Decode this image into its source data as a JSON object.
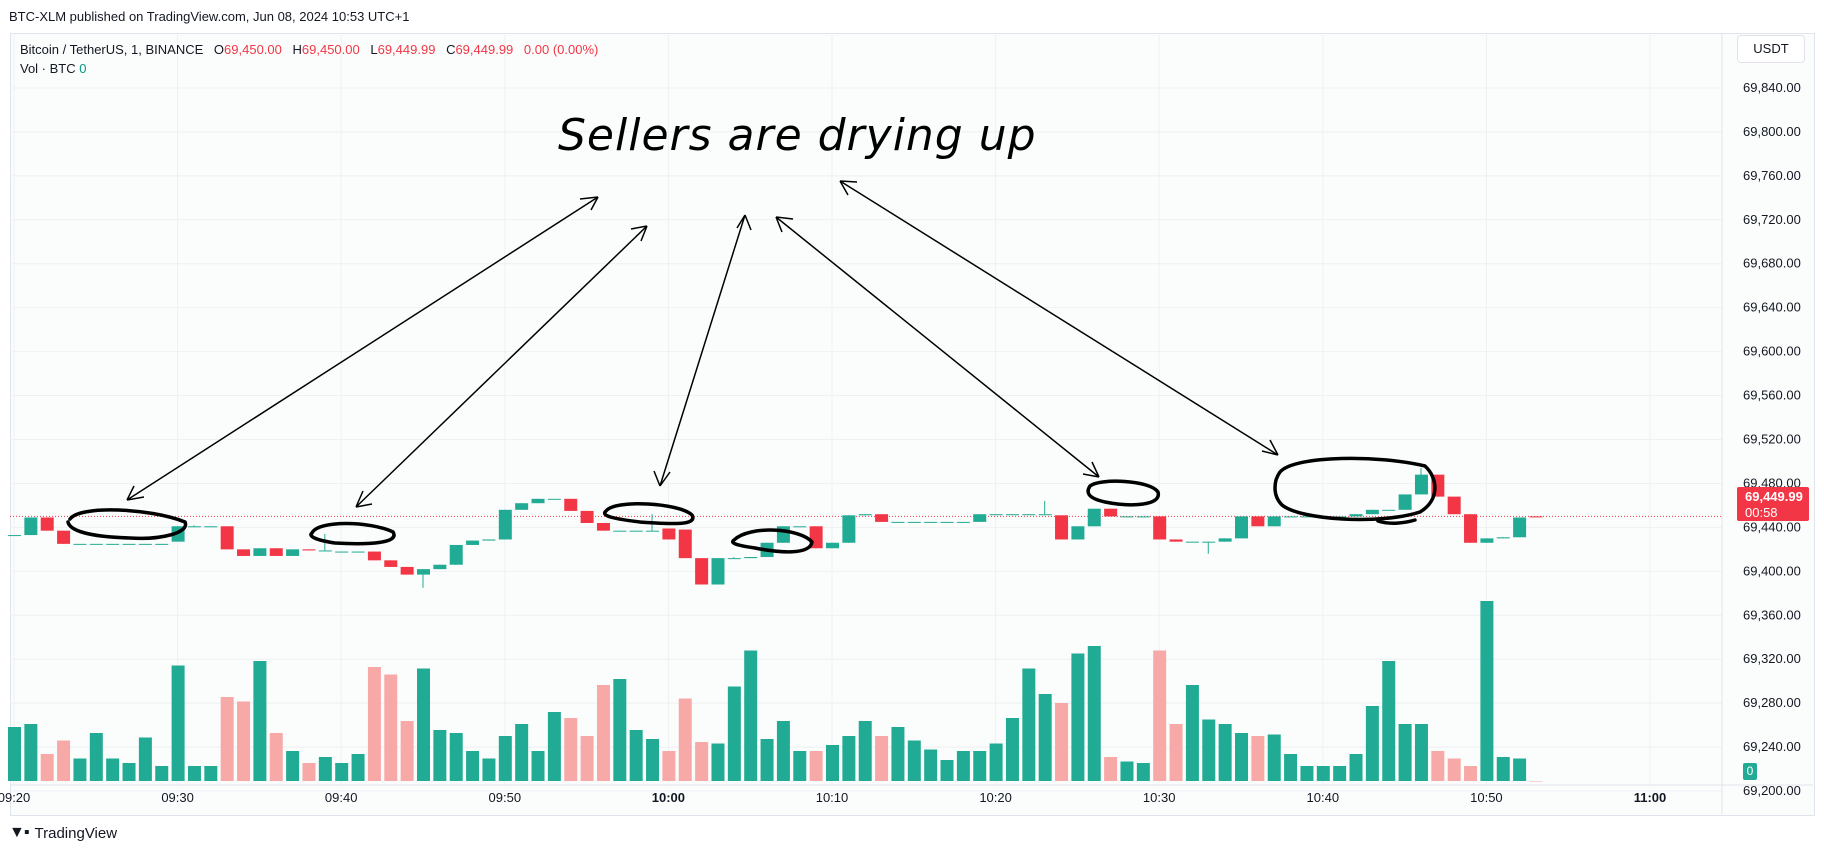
{
  "header": {
    "published": "BTC-XLM published on TradingView.com, Jun 08, 2024 10:53 UTC+1"
  },
  "legend": {
    "symbol": "Bitcoin / TetherUS, 1, BINANCE",
    "o_label": "O",
    "o_value": "69,450.00",
    "h_label": "H",
    "h_value": "69,450.00",
    "l_label": "L",
    "l_value": "69,449.99",
    "c_label": "C",
    "c_value": "69,449.99",
    "change": "0.00 (0.00%)",
    "vol_label": "Vol · BTC",
    "vol_value": "0"
  },
  "currency_button": "USDT",
  "last_price": {
    "price": "69,449.99",
    "countdown": "00:58"
  },
  "volume_badge": "0",
  "annotation_text": "Sellers are drying up",
  "footer": {
    "brand": "TradingView"
  },
  "colors": {
    "up": "#22ab94",
    "down": "#f23645",
    "vol_up": "#22ab94",
    "vol_down": "#f7a9a7",
    "grid": "#eef0f3",
    "last_line": "#f23645"
  },
  "chart_data": {
    "type": "candlestick",
    "y_ticks": [
      "69,840.00",
      "69,800.00",
      "69,760.00",
      "69,720.00",
      "69,680.00",
      "69,640.00",
      "69,600.00",
      "69,560.00",
      "69,520.00",
      "69,480.00",
      "69,440.00",
      "69,400.00",
      "69,360.00",
      "69,320.00",
      "69,280.00",
      "69,240.00",
      "69,200.00"
    ],
    "ylim": [
      69180,
      69860
    ],
    "x_ticks": [
      "09:20",
      "09:30",
      "09:40",
      "09:50",
      "10:00",
      "10:10",
      "10:20",
      "10:30",
      "10:40",
      "10:50",
      "11:00"
    ],
    "start_time": "09:20",
    "end_time": "11:00",
    "candles": [
      {
        "t": "09:20",
        "o": 69433,
        "h": 69433,
        "l": 69433,
        "c": 69433,
        "v": 0.36
      },
      {
        "t": "09:21",
        "o": 69433,
        "h": 69449,
        "l": 69433,
        "c": 69449,
        "v": 0.38
      },
      {
        "t": "09:22",
        "o": 69449,
        "h": 69449,
        "l": 69437,
        "c": 69437,
        "v": 0.18
      },
      {
        "t": "09:23",
        "o": 69437,
        "h": 69437,
        "l": 69425,
        "c": 69425,
        "v": 0.27
      },
      {
        "t": "09:24",
        "o": 69425,
        "h": 69425,
        "l": 69425,
        "c": 69425,
        "v": 0.15
      },
      {
        "t": "09:25",
        "o": 69425,
        "h": 69425,
        "l": 69425,
        "c": 69425,
        "v": 0.32
      },
      {
        "t": "09:26",
        "o": 69425,
        "h": 69425,
        "l": 69425,
        "c": 69425,
        "v": 0.15
      },
      {
        "t": "09:27",
        "o": 69425,
        "h": 69425,
        "l": 69425,
        "c": 69425,
        "v": 0.12
      },
      {
        "t": "09:28",
        "o": 69425,
        "h": 69425,
        "l": 69425,
        "c": 69425,
        "v": 0.29
      },
      {
        "t": "09:29",
        "o": 69425,
        "h": 69425,
        "l": 69425,
        "c": 69425,
        "v": 0.1
      },
      {
        "t": "09:30",
        "o": 69427,
        "h": 69441,
        "l": 69427,
        "c": 69441,
        "v": 0.77
      },
      {
        "t": "09:31",
        "o": 69441,
        "h": 69442,
        "l": 69441,
        "c": 69441,
        "v": 0.1
      },
      {
        "t": "09:32",
        "o": 69441,
        "h": 69441,
        "l": 69441,
        "c": 69441,
        "v": 0.1
      },
      {
        "t": "09:33",
        "o": 69441,
        "h": 69441,
        "l": 69420,
        "c": 69420,
        "v": 0.56
      },
      {
        "t": "09:34",
        "o": 69420,
        "h": 69420,
        "l": 69414,
        "c": 69414,
        "v": 0.53
      },
      {
        "t": "09:35",
        "o": 69414,
        "h": 69421,
        "l": 69414,
        "c": 69421,
        "v": 0.8
      },
      {
        "t": "09:36",
        "o": 69421,
        "h": 69421,
        "l": 69414,
        "c": 69414,
        "v": 0.32
      },
      {
        "t": "09:37",
        "o": 69414,
        "h": 69420,
        "l": 69414,
        "c": 69420,
        "v": 0.2
      },
      {
        "t": "09:38",
        "o": 69420,
        "h": 69420,
        "l": 69419,
        "c": 69419,
        "v": 0.12
      },
      {
        "t": "09:39",
        "o": 69419,
        "h": 69434,
        "l": 69419,
        "c": 69419,
        "v": 0.16
      },
      {
        "t": "09:40",
        "o": 69418,
        "h": 69418,
        "l": 69418,
        "c": 69418,
        "v": 0.12
      },
      {
        "t": "09:41",
        "o": 69418,
        "h": 69418,
        "l": 69418,
        "c": 69418,
        "v": 0.18
      },
      {
        "t": "09:42",
        "o": 69418,
        "h": 69418,
        "l": 69410,
        "c": 69410,
        "v": 0.76
      },
      {
        "t": "09:43",
        "o": 69410,
        "h": 69410,
        "l": 69404,
        "c": 69404,
        "v": 0.71
      },
      {
        "t": "09:44",
        "o": 69404,
        "h": 69404,
        "l": 69397,
        "c": 69397,
        "v": 0.4
      },
      {
        "t": "09:45",
        "o": 69397,
        "h": 69402,
        "l": 69385,
        "c": 69402,
        "v": 0.75
      },
      {
        "t": "09:46",
        "o": 69402,
        "h": 69406,
        "l": 69402,
        "c": 69406,
        "v": 0.34
      },
      {
        "t": "09:47",
        "o": 69406,
        "h": 69424,
        "l": 69406,
        "c": 69424,
        "v": 0.32
      },
      {
        "t": "09:48",
        "o": 69424,
        "h": 69428,
        "l": 69424,
        "c": 69428,
        "v": 0.2
      },
      {
        "t": "09:49",
        "o": 69428,
        "h": 69429,
        "l": 69428,
        "c": 69429,
        "v": 0.15
      },
      {
        "t": "09:50",
        "o": 69429,
        "h": 69456,
        "l": 69429,
        "c": 69456,
        "v": 0.3
      },
      {
        "t": "09:51",
        "o": 69456,
        "h": 69462,
        "l": 69456,
        "c": 69462,
        "v": 0.38
      },
      {
        "t": "09:52",
        "o": 69462,
        "h": 69466,
        "l": 69462,
        "c": 69466,
        "v": 0.2
      },
      {
        "t": "09:53",
        "o": 69466,
        "h": 69466,
        "l": 69466,
        "c": 69466,
        "v": 0.46
      },
      {
        "t": "09:54",
        "o": 69466,
        "h": 69466,
        "l": 69455,
        "c": 69455,
        "v": 0.42
      },
      {
        "t": "09:55",
        "o": 69455,
        "h": 69455,
        "l": 69444,
        "c": 69444,
        "v": 0.3
      },
      {
        "t": "09:56",
        "o": 69444,
        "h": 69444,
        "l": 69437,
        "c": 69437,
        "v": 0.64
      },
      {
        "t": "09:57",
        "o": 69437,
        "h": 69437,
        "l": 69437,
        "c": 69437,
        "v": 0.68
      },
      {
        "t": "09:58",
        "o": 69437,
        "h": 69437,
        "l": 69437,
        "c": 69437,
        "v": 0.34
      },
      {
        "t": "09:59",
        "o": 69437,
        "h": 69452,
        "l": 69437,
        "c": 69437,
        "v": 0.28
      },
      {
        "t": "10:00",
        "o": 69439,
        "h": 69439,
        "l": 69429,
        "c": 69429,
        "v": 0.2
      },
      {
        "t": "10:01",
        "o": 69438,
        "h": 69438,
        "l": 69412,
        "c": 69412,
        "v": 0.55
      },
      {
        "t": "10:02",
        "o": 69412,
        "h": 69412,
        "l": 69388,
        "c": 69388,
        "v": 0.26
      },
      {
        "t": "10:03",
        "o": 69388,
        "h": 69412,
        "l": 69388,
        "c": 69412,
        "v": 0.25
      },
      {
        "t": "10:04",
        "o": 69412,
        "h": 69413,
        "l": 69412,
        "c": 69412,
        "v": 0.63
      },
      {
        "t": "10:05",
        "o": 69412,
        "h": 69413,
        "l": 69412,
        "c": 69413,
        "v": 0.87
      },
      {
        "t": "10:06",
        "o": 69413,
        "h": 69426,
        "l": 69413,
        "c": 69426,
        "v": 0.28
      },
      {
        "t": "10:07",
        "o": 69426,
        "h": 69441,
        "l": 69426,
        "c": 69441,
        "v": 0.4
      },
      {
        "t": "10:08",
        "o": 69441,
        "h": 69441,
        "l": 69441,
        "c": 69441,
        "v": 0.2
      },
      {
        "t": "10:09",
        "o": 69441,
        "h": 69441,
        "l": 69421,
        "c": 69421,
        "v": 0.2
      },
      {
        "t": "10:10",
        "o": 69421,
        "h": 69426,
        "l": 69421,
        "c": 69426,
        "v": 0.24
      },
      {
        "t": "10:11",
        "o": 69426,
        "h": 69451,
        "l": 69426,
        "c": 69451,
        "v": 0.3
      },
      {
        "t": "10:12",
        "o": 69451,
        "h": 69452,
        "l": 69451,
        "c": 69452,
        "v": 0.4
      },
      {
        "t": "10:13",
        "o": 69452,
        "h": 69452,
        "l": 69445,
        "c": 69445,
        "v": 0.3
      },
      {
        "t": "10:14",
        "o": 69445,
        "h": 69445,
        "l": 69445,
        "c": 69445,
        "v": 0.36
      },
      {
        "t": "10:15",
        "o": 69445,
        "h": 69445,
        "l": 69445,
        "c": 69445,
        "v": 0.27
      },
      {
        "t": "10:16",
        "o": 69445,
        "h": 69445,
        "l": 69445,
        "c": 69445,
        "v": 0.21
      },
      {
        "t": "10:17",
        "o": 69445,
        "h": 69445,
        "l": 69445,
        "c": 69445,
        "v": 0.14
      },
      {
        "t": "10:18",
        "o": 69445,
        "h": 69445,
        "l": 69445,
        "c": 69445,
        "v": 0.2
      },
      {
        "t": "10:19",
        "o": 69445,
        "h": 69452,
        "l": 69445,
        "c": 69452,
        "v": 0.2
      },
      {
        "t": "10:20",
        "o": 69452,
        "h": 69452,
        "l": 69452,
        "c": 69452,
        "v": 0.25
      },
      {
        "t": "10:21",
        "o": 69452,
        "h": 69452,
        "l": 69452,
        "c": 69452,
        "v": 0.42
      },
      {
        "t": "10:22",
        "o": 69452,
        "h": 69452,
        "l": 69452,
        "c": 69452,
        "v": 0.75
      },
      {
        "t": "10:23",
        "o": 69452,
        "h": 69464,
        "l": 69452,
        "c": 69452,
        "v": 0.58
      },
      {
        "t": "10:24",
        "o": 69451,
        "h": 69451,
        "l": 69429,
        "c": 69429,
        "v": 0.52
      },
      {
        "t": "10:25",
        "o": 69429,
        "h": 69441,
        "l": 69429,
        "c": 69441,
        "v": 0.85
      },
      {
        "t": "10:26",
        "o": 69441,
        "h": 69457,
        "l": 69441,
        "c": 69457,
        "v": 0.9
      },
      {
        "t": "10:27",
        "o": 69457,
        "h": 69457,
        "l": 69450,
        "c": 69450,
        "v": 0.16
      },
      {
        "t": "10:28",
        "o": 69450,
        "h": 69450,
        "l": 69450,
        "c": 69450,
        "v": 0.13
      },
      {
        "t": "10:29",
        "o": 69450,
        "h": 69450,
        "l": 69450,
        "c": 69450,
        "v": 0.12
      },
      {
        "t": "10:30",
        "o": 69450,
        "h": 69450,
        "l": 69429,
        "c": 69429,
        "v": 0.87
      },
      {
        "t": "10:31",
        "o": 69429,
        "h": 69429,
        "l": 69427,
        "c": 69427,
        "v": 0.38
      },
      {
        "t": "10:32",
        "o": 69427,
        "h": 69427,
        "l": 69427,
        "c": 69427,
        "v": 0.64
      },
      {
        "t": "10:33",
        "o": 69427,
        "h": 69427,
        "l": 69416,
        "c": 69427,
        "v": 0.41
      },
      {
        "t": "10:34",
        "o": 69427,
        "h": 69430,
        "l": 69427,
        "c": 69430,
        "v": 0.38
      },
      {
        "t": "10:35",
        "o": 69430,
        "h": 69450,
        "l": 69430,
        "c": 69450,
        "v": 0.32
      },
      {
        "t": "10:36",
        "o": 69450,
        "h": 69450,
        "l": 69441,
        "c": 69441,
        "v": 0.3
      },
      {
        "t": "10:37",
        "o": 69441,
        "h": 69450,
        "l": 69441,
        "c": 69450,
        "v": 0.31
      },
      {
        "t": "10:38",
        "o": 69450,
        "h": 69450,
        "l": 69450,
        "c": 69450,
        "v": 0.18
      },
      {
        "t": "10:39",
        "o": 69450,
        "h": 69450,
        "l": 69450,
        "c": 69450,
        "v": 0.1
      },
      {
        "t": "10:40",
        "o": 69450,
        "h": 69450,
        "l": 69450,
        "c": 69450,
        "v": 0.1
      },
      {
        "t": "10:41",
        "o": 69450,
        "h": 69450,
        "l": 69450,
        "c": 69450,
        "v": 0.1
      },
      {
        "t": "10:42",
        "o": 69450,
        "h": 69452,
        "l": 69450,
        "c": 69452,
        "v": 0.18
      },
      {
        "t": "10:43",
        "o": 69452,
        "h": 69456,
        "l": 69452,
        "c": 69456,
        "v": 0.5
      },
      {
        "t": "10:44",
        "o": 69456,
        "h": 69456,
        "l": 69456,
        "c": 69456,
        "v": 0.8
      },
      {
        "t": "10:45",
        "o": 69456,
        "h": 69470,
        "l": 69456,
        "c": 69470,
        "v": 0.38
      },
      {
        "t": "10:46",
        "o": 69470,
        "h": 69494,
        "l": 69470,
        "c": 69488,
        "v": 0.38
      },
      {
        "t": "10:47",
        "o": 69488,
        "h": 69488,
        "l": 69468,
        "c": 69468,
        "v": 0.2
      },
      {
        "t": "10:48",
        "o": 69468,
        "h": 69468,
        "l": 69452,
        "c": 69452,
        "v": 0.15
      },
      {
        "t": "10:49",
        "o": 69452,
        "h": 69452,
        "l": 69426,
        "c": 69426,
        "v": 0.1
      },
      {
        "t": "10:50",
        "o": 69426,
        "h": 69430,
        "l": 69426,
        "c": 69430,
        "v": 1.2
      },
      {
        "t": "10:51",
        "o": 69430,
        "h": 69431,
        "l": 69430,
        "c": 69431,
        "v": 0.16
      },
      {
        "t": "10:52",
        "o": 69431,
        "h": 69449,
        "l": 69431,
        "c": 69449,
        "v": 0.15
      },
      {
        "t": "10:53",
        "o": 69450,
        "h": 69450,
        "l": 69449.99,
        "c": 69449.99,
        "v": 0
      }
    ]
  }
}
